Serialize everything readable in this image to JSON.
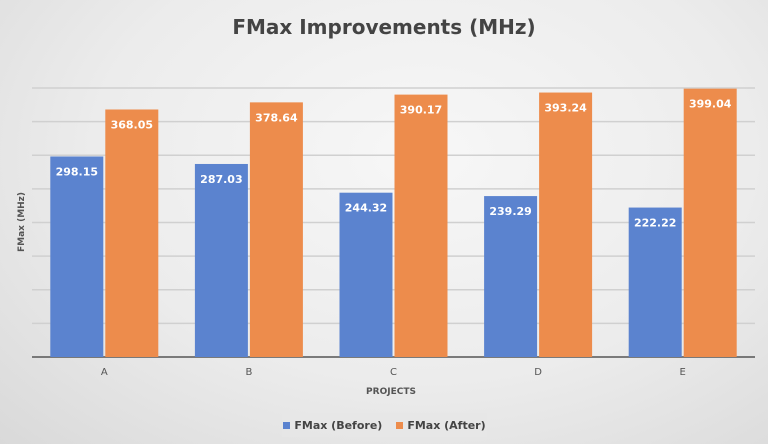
{
  "chart_data": {
    "type": "bar",
    "title": "FMax Improvements (MHz)",
    "xlabel": "PROJECTS",
    "ylabel": "FMax (MHz)",
    "categories": [
      "A",
      "B",
      "C",
      "D",
      "E"
    ],
    "series": [
      {
        "name": "FMax (Before)",
        "color": "#5b83cf",
        "values": [
          298.15,
          287.03,
          244.32,
          239.29,
          222.22
        ],
        "labels": [
          "298.15",
          "287.03",
          "244.32",
          "239.29",
          "222.22"
        ]
      },
      {
        "name": "FMax (After)",
        "color": "#ed8c4c",
        "values": [
          368.05,
          378.64,
          390.17,
          393.24,
          399.04
        ],
        "labels": [
          "368.05",
          "378.64",
          "390.17",
          "393.24",
          "399.04"
        ]
      }
    ],
    "ylim": [
      0,
      400
    ],
    "ytick_step": 50,
    "grid": true,
    "legend_position": "bottom"
  }
}
